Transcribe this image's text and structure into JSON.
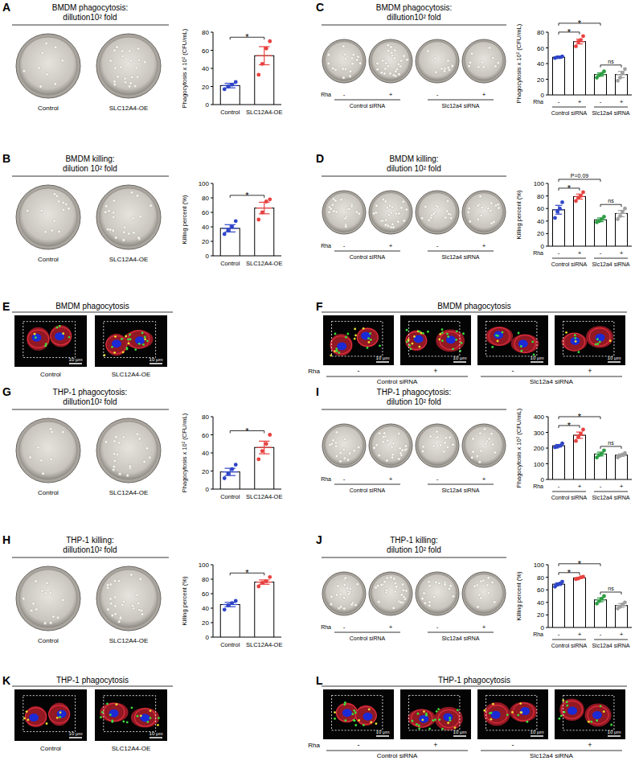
{
  "chart_data": [
    {
      "panel": "A",
      "type": "bar",
      "title": [
        "BMDM phagocytosis:",
        "dillution10² fold"
      ],
      "y_label": "Phagocytosis x 10² (CFU/mL)",
      "categories": [
        "Control",
        "SLC12A4-OE"
      ],
      "values": [
        21,
        54
      ],
      "errors": [
        2.5,
        10
      ],
      "points": [
        [
          17,
          20,
          22,
          25
        ],
        [
          33,
          45,
          62,
          70
        ]
      ],
      "colors": [
        "#2f45c8",
        "#e8413f"
      ],
      "ylim": [
        0,
        80
      ],
      "yticks": [
        0,
        20,
        40,
        60,
        80
      ],
      "significance": [
        {
          "from": 0,
          "to": 1,
          "label": "*"
        }
      ]
    },
    {
      "panel": "B",
      "type": "bar",
      "title": [
        "BMDM killing:",
        "dilution 10² fold"
      ],
      "y_label": "Killing percent (%)",
      "categories": [
        "Control",
        "SLC12A4-OE"
      ],
      "values": [
        38,
        66
      ],
      "errors": [
        5,
        8
      ],
      "points": [
        [
          30,
          35,
          40,
          48
        ],
        [
          50,
          60,
          75,
          78
        ]
      ],
      "colors": [
        "#2f45c8",
        "#e8413f"
      ],
      "ylim": [
        0,
        100
      ],
      "yticks": [
        0,
        20,
        40,
        60,
        80,
        100
      ],
      "significance": [
        {
          "from": 0,
          "to": 1,
          "label": "*"
        }
      ]
    },
    {
      "panel": "C",
      "type": "bar",
      "title": [
        "BMDM phagocytosis:",
        "dillution10² fold"
      ],
      "y_label": "Phagocytosis x 10² (CFU/mL)",
      "categories": [
        "-",
        "+",
        "-",
        "+"
      ],
      "row_label": "Rha",
      "groups": [
        "Control siRNA",
        "Slc12a4 siRNA"
      ],
      "values": [
        48,
        68,
        26,
        26
      ],
      "errors": [
        1,
        3,
        2,
        4
      ],
      "points": [
        [
          47,
          48,
          48,
          49
        ],
        [
          62,
          68,
          70,
          75
        ],
        [
          22,
          25,
          27,
          30
        ],
        [
          18,
          22,
          28,
          33
        ]
      ],
      "colors": [
        "#2f45c8",
        "#e8413f",
        "#2e9e44",
        "#a0a0a0"
      ],
      "ylim": [
        0,
        80
      ],
      "yticks": [
        0,
        20,
        40,
        60,
        80
      ],
      "significance": [
        {
          "from": 0,
          "to": 1,
          "label": "*"
        },
        {
          "from": 2,
          "to": 3,
          "label": "ns"
        },
        {
          "from": 0,
          "to": 2,
          "label": "*"
        }
      ]
    },
    {
      "panel": "D",
      "type": "bar",
      "title": [
        "BMDM killing:",
        "dilution 10² fold"
      ],
      "y_label": "Killing percent (%)",
      "categories": [
        "-",
        "+",
        "-",
        "+"
      ],
      "row_label": "Rha",
      "groups": [
        "Control siRNA",
        "Slc12a4 siRNA"
      ],
      "values": [
        58,
        79,
        42,
        52
      ],
      "errors": [
        7,
        4,
        3,
        5
      ],
      "points": [
        [
          45,
          55,
          60,
          70
        ],
        [
          72,
          77,
          80,
          86
        ],
        [
          38,
          40,
          43,
          47
        ],
        [
          43,
          48,
          55,
          60
        ]
      ],
      "colors": [
        "#2f45c8",
        "#e8413f",
        "#2e9e44",
        "#a0a0a0"
      ],
      "ylim": [
        0,
        100
      ],
      "yticks": [
        0,
        20,
        40,
        60,
        80,
        100
      ],
      "significance": [
        {
          "from": 0,
          "to": 1,
          "label": "*"
        },
        {
          "from": 2,
          "to": 3,
          "label": "ns"
        },
        {
          "from": 0,
          "to": 2,
          "label": "P=0.09"
        }
      ]
    },
    {
      "panel": "G",
      "type": "bar",
      "title": [
        "THP-1 phagocytosis:",
        "dillution10² fold"
      ],
      "y_label": "Phagocytosis x 10² (CFU/mL)",
      "categories": [
        "Control",
        "SLC12A4-OE"
      ],
      "values": [
        19,
        46
      ],
      "errors": [
        4,
        7
      ],
      "points": [
        [
          12,
          17,
          22,
          27
        ],
        [
          33,
          42,
          50,
          60
        ]
      ],
      "colors": [
        "#2f45c8",
        "#e8413f"
      ],
      "ylim": [
        0,
        80
      ],
      "yticks": [
        0,
        20,
        40,
        60,
        80
      ],
      "significance": [
        {
          "from": 0,
          "to": 1,
          "label": "*"
        }
      ]
    },
    {
      "panel": "H",
      "type": "bar",
      "title": [
        "THP-1 killing:",
        "dillution10² fold"
      ],
      "y_label": "Killing percent (%)",
      "categories": [
        "Control",
        "SLC12A4-OE"
      ],
      "values": [
        45,
        76
      ],
      "errors": [
        3,
        3
      ],
      "points": [
        [
          38,
          44,
          47,
          50
        ],
        [
          70,
          75,
          77,
          83
        ]
      ],
      "colors": [
        "#2f45c8",
        "#e8413f"
      ],
      "ylim": [
        0,
        100
      ],
      "yticks": [
        0,
        20,
        40,
        60,
        80,
        100
      ],
      "significance": [
        {
          "from": 0,
          "to": 1,
          "label": "*"
        }
      ]
    },
    {
      "panel": "I",
      "type": "bar",
      "title": [
        "THP-1 phagocytosis:",
        "dilution 10² fold"
      ],
      "y_label": "Phagocytosis x 10² (CFU/mL)",
      "categories": [
        "-",
        "+",
        "-",
        "+"
      ],
      "row_label": "Rha",
      "groups": [
        "Control siRNA",
        "Slc12a4 siRNA"
      ],
      "values": [
        215,
        282,
        162,
        155
      ],
      "errors": [
        8,
        20,
        12,
        8
      ],
      "points": [
        [
          205,
          208,
          215,
          230
        ],
        [
          245,
          270,
          290,
          318
        ],
        [
          140,
          155,
          165,
          185
        ],
        [
          140,
          150,
          160,
          168
        ]
      ],
      "colors": [
        "#2f45c8",
        "#e8413f",
        "#2e9e44",
        "#a0a0a0"
      ],
      "ylim": [
        0,
        400
      ],
      "yticks": [
        0,
        100,
        200,
        300,
        400
      ],
      "significance": [
        {
          "from": 0,
          "to": 1,
          "label": "*"
        },
        {
          "from": 2,
          "to": 3,
          "label": "ns"
        },
        {
          "from": 0,
          "to": 2,
          "label": "*"
        }
      ]
    },
    {
      "panel": "J",
      "type": "bar",
      "title": [
        "THP-1 killing:",
        "dilution 10² fold"
      ],
      "y_label": "Killing percent (%)",
      "categories": [
        "-",
        "+",
        "-",
        "+"
      ],
      "row_label": "Rha",
      "groups": [
        "Control siRNA",
        "Slc12a4 siRNA"
      ],
      "values": [
        69,
        79,
        44,
        35
      ],
      "errors": [
        2,
        1,
        3,
        3
      ],
      "points": [
        [
          65,
          68,
          70,
          73
        ],
        [
          77,
          78,
          80,
          81
        ],
        [
          38,
          42,
          46,
          50
        ],
        [
          30,
          33,
          37,
          40
        ]
      ],
      "colors": [
        "#2f45c8",
        "#e8413f",
        "#2e9e44",
        "#a0a0a0"
      ],
      "ylim": [
        0,
        100
      ],
      "yticks": [
        0,
        20,
        40,
        60,
        80,
        100
      ],
      "significance": [
        {
          "from": 0,
          "to": 1,
          "label": "*"
        },
        {
          "from": 2,
          "to": 3,
          "label": "ns"
        },
        {
          "from": 0,
          "to": 2,
          "label": "*"
        }
      ]
    }
  ],
  "image_panels": [
    {
      "panel": "E",
      "title": "BMDM phagocytosis",
      "categories": [
        "Control",
        "SLC12A4-OE"
      ],
      "scale_bar": "10 μm"
    },
    {
      "panel": "F",
      "title": "BMDM phagocytosis",
      "categories": [
        "-",
        "+",
        "-",
        "+"
      ],
      "row_label": "Rha",
      "groups": [
        "Control siRNA",
        "Slc12a4 siRNA"
      ],
      "scale_bar": "10 μm"
    },
    {
      "panel": "K",
      "title": "THP-1 phagocytosis",
      "categories": [
        "Control",
        "SLC12A4-OE"
      ],
      "scale_bar": "10 μm"
    },
    {
      "panel": "L",
      "title": "THP-1 phagocytosis",
      "categories": [
        "-",
        "+",
        "-",
        "+"
      ],
      "row_label": "Rha",
      "groups": [
        "Control siRNA",
        "Slc12a4 siRNA"
      ],
      "scale_bar": "10 μm"
    }
  ]
}
